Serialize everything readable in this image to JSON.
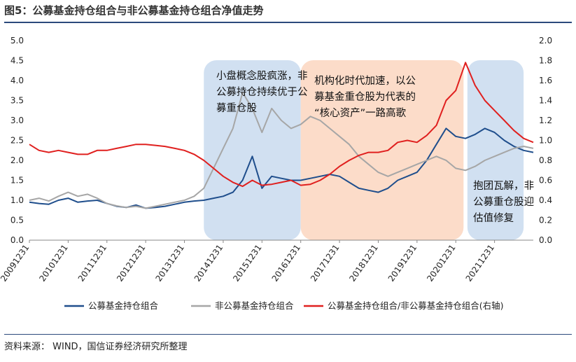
{
  "header": {
    "title": "图5：公募基金持仓组合与非公募基金持仓组合净值走势"
  },
  "footer": {
    "source": "资料来源：   WIND，国信证券经济研究所整理"
  },
  "chart_data": {
    "type": "line",
    "x_labels": [
      "20091231",
      "20101231",
      "20111231",
      "20121231",
      "20131231",
      "20141231",
      "20151231",
      "20161231",
      "20171231",
      "20181231",
      "20191231",
      "20201231",
      "20211231"
    ],
    "x": [
      2009,
      2009.25,
      2009.5,
      2009.75,
      2010,
      2010.25,
      2010.5,
      2010.75,
      2011,
      2011.25,
      2011.5,
      2011.75,
      2012,
      2012.25,
      2012.5,
      2012.75,
      2013,
      2013.25,
      2013.5,
      2013.75,
      2014,
      2014.25,
      2014.5,
      2014.75,
      2015,
      2015.25,
      2015.5,
      2015.75,
      2016,
      2016.25,
      2016.5,
      2016.75,
      2017,
      2017.25,
      2017.5,
      2017.75,
      2018,
      2018.25,
      2018.5,
      2018.75,
      2019,
      2019.25,
      2019.5,
      2019.75,
      2020,
      2020.25,
      2020.5,
      2020.75,
      2021,
      2021.25,
      2021.5,
      2021.75,
      2022
    ],
    "left_axis": {
      "ylim": [
        0,
        5.0
      ],
      "ticks": [
        "0.0",
        "0.5",
        "1.0",
        "1.5",
        "2.0",
        "2.5",
        "3.0",
        "3.5",
        "4.0",
        "4.5",
        "5.0"
      ]
    },
    "right_axis": {
      "ylim": [
        0,
        2.0
      ],
      "ticks": [
        "0.0",
        "0.2",
        "0.4",
        "0.6",
        "0.8",
        "1.0",
        "1.2",
        "1.4",
        "1.6",
        "1.8",
        "2.0"
      ]
    },
    "series": [
      {
        "name": "公募基金持仓组合",
        "axis": "left",
        "color": "#1f4e8c",
        "values": [
          0.95,
          0.92,
          0.9,
          1.0,
          1.05,
          0.95,
          0.98,
          1.0,
          0.92,
          0.85,
          0.82,
          0.88,
          0.8,
          0.82,
          0.85,
          0.9,
          0.95,
          0.98,
          1.0,
          1.05,
          1.1,
          1.2,
          1.5,
          2.1,
          1.3,
          1.6,
          1.55,
          1.5,
          1.5,
          1.55,
          1.6,
          1.65,
          1.6,
          1.45,
          1.3,
          1.25,
          1.2,
          1.3,
          1.5,
          1.6,
          1.7,
          2.0,
          2.4,
          2.8,
          2.6,
          2.55,
          2.65,
          2.8,
          2.7,
          2.5,
          2.35,
          2.25,
          2.2
        ]
      },
      {
        "name": "非公募基金持仓组合",
        "axis": "left",
        "color": "#a6a6a6",
        "values": [
          1.0,
          1.05,
          0.98,
          1.1,
          1.2,
          1.1,
          1.15,
          1.05,
          0.92,
          0.86,
          0.82,
          0.85,
          0.8,
          0.85,
          0.9,
          0.95,
          1.0,
          1.1,
          1.3,
          1.8,
          2.3,
          2.8,
          3.7,
          3.3,
          2.7,
          3.3,
          3.0,
          2.8,
          2.9,
          3.1,
          3.0,
          2.8,
          2.6,
          2.4,
          2.1,
          1.9,
          1.7,
          1.6,
          1.7,
          1.8,
          1.9,
          2.0,
          2.1,
          2.0,
          1.8,
          1.75,
          1.85,
          2.0,
          2.1,
          2.2,
          2.3,
          2.35,
          2.3
        ]
      },
      {
        "name": "公募基金持仓组合/非公募基金持仓组合(右轴)",
        "axis": "right",
        "color": "#e0201f",
        "values": [
          0.96,
          0.9,
          0.88,
          0.9,
          0.88,
          0.86,
          0.86,
          0.9,
          0.9,
          0.92,
          0.94,
          0.96,
          0.96,
          0.95,
          0.94,
          0.92,
          0.9,
          0.86,
          0.8,
          0.72,
          0.64,
          0.58,
          0.54,
          0.6,
          0.55,
          0.56,
          0.58,
          0.6,
          0.55,
          0.56,
          0.6,
          0.66,
          0.74,
          0.8,
          0.85,
          0.88,
          0.88,
          0.9,
          0.98,
          1.0,
          0.98,
          1.05,
          1.15,
          1.4,
          1.5,
          1.78,
          1.55,
          1.4,
          1.3,
          1.2,
          1.1,
          1.02,
          0.98
        ]
      }
    ],
    "shaded_regions": [
      {
        "x_start": 2013.5,
        "x_end": 2016.0,
        "color": "#c9dbef",
        "text": [
          "小盘概念股疯涨，非",
          "公募持仓持续优于公",
          "募重仓股"
        ]
      },
      {
        "x_start": 2016.0,
        "x_end": 2020.2,
        "color": "#fbd6c0",
        "text": [
          "机构化时代加速，以公",
          "募基金重仓股为代表的",
          "“核心资产”一路高歌"
        ]
      },
      {
        "x_start": 2020.3,
        "x_end": 2021.75,
        "color": "#c9dbef",
        "text": [
          "抱团瓦解，非",
          "公募重仓股迎",
          "估值修复"
        ]
      }
    ],
    "legend": {
      "placement": "bottom"
    }
  }
}
